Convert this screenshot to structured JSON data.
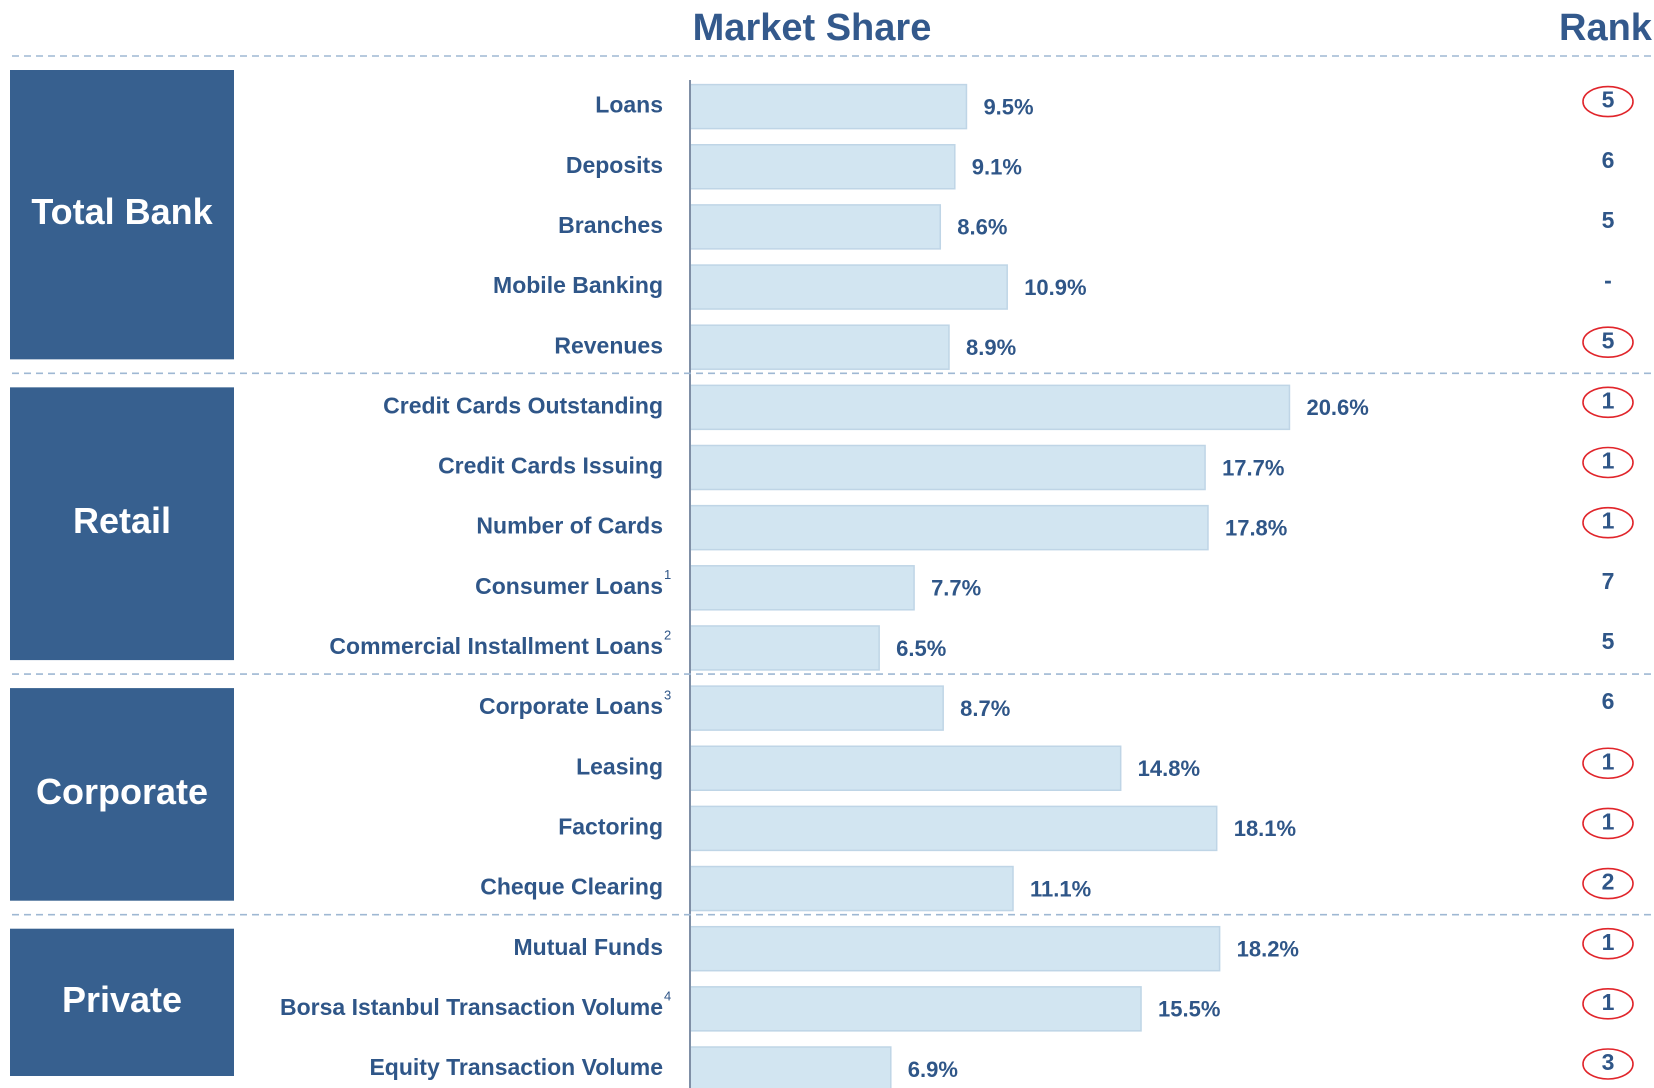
{
  "chart_data": {
    "type": "bar",
    "title": "Market Share",
    "rank_title": "Rank",
    "color": "#d2e5f1",
    "groups": [
      {
        "name": "Total Bank",
        "categories": [
          "Loans",
          "Deposits",
          "Branches",
          "Mobile Banking",
          "Revenues"
        ],
        "footnotes": [
          null,
          null,
          null,
          null,
          null
        ],
        "values": [
          9.5,
          9.1,
          8.6,
          10.9,
          8.9
        ],
        "value_labels": [
          "9.5%",
          "9.1%",
          "8.6%",
          "10.9%",
          "8.9%"
        ],
        "ranks": [
          5,
          6,
          5,
          "-",
          5
        ],
        "rank_circled": [
          true,
          false,
          false,
          false,
          true
        ]
      },
      {
        "name": "Retail",
        "categories": [
          "Credit Cards Outstanding",
          "Credit Cards Issuing",
          "Number of Cards",
          "Consumer Loans",
          "Commercial Installment Loans"
        ],
        "footnotes": [
          null,
          null,
          null,
          "1",
          "2"
        ],
        "values": [
          20.6,
          17.7,
          17.8,
          7.7,
          6.5
        ],
        "value_labels": [
          "20.6%",
          "17.7%",
          "17.8%",
          "7.7%",
          "6.5%"
        ],
        "ranks": [
          1,
          1,
          1,
          7,
          5
        ],
        "rank_circled": [
          true,
          true,
          true,
          false,
          false
        ]
      },
      {
        "name": "Corporate",
        "categories": [
          "Corporate Loans",
          "Leasing",
          "Factoring",
          "Cheque Clearing"
        ],
        "footnotes": [
          "3",
          null,
          null,
          null
        ],
        "values": [
          8.7,
          14.8,
          18.1,
          11.1
        ],
        "value_labels": [
          "8.7%",
          "14.8%",
          "18.1%",
          "11.1%"
        ],
        "ranks": [
          6,
          1,
          1,
          2
        ],
        "rank_circled": [
          false,
          true,
          true,
          true
        ]
      },
      {
        "name": "Private",
        "categories": [
          "Mutual Funds",
          "Borsa Istanbul Transaction Volume",
          "Equity Transaction Volume"
        ],
        "footnotes": [
          null,
          "4",
          null
        ],
        "values": [
          18.2,
          15.5,
          6.9
        ],
        "value_labels": [
          "18.2%",
          "15.5%",
          "6.9%"
        ],
        "ranks": [
          1,
          1,
          3
        ],
        "rank_circled": [
          true,
          true,
          true
        ]
      }
    ]
  }
}
